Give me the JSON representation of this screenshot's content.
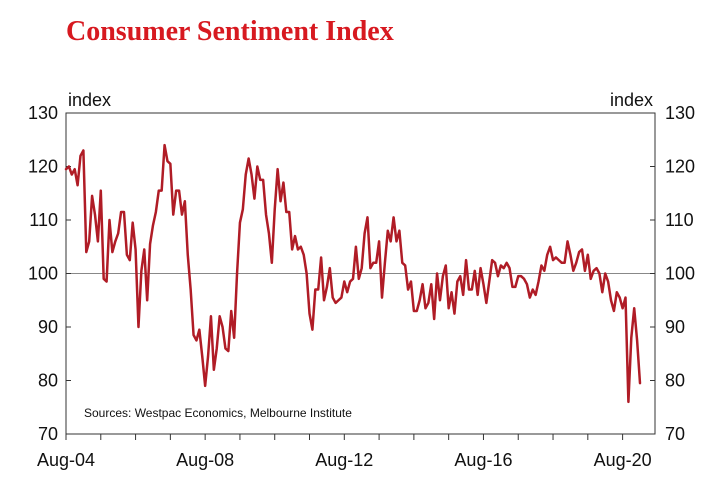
{
  "chart_data": {
    "type": "line",
    "title": "Consumer Sentiment Index",
    "ylabel_left": "index",
    "ylabel_right": "index",
    "ylim": [
      70,
      130
    ],
    "yticks": [
      70,
      80,
      90,
      100,
      110,
      120,
      130
    ],
    "reference_line": 100,
    "x_start": "Aug-04",
    "x_end": "Aug-20",
    "xticks": [
      {
        "label": "Aug-04",
        "t": 0
      },
      {
        "label": "Aug-08",
        "t": 48
      },
      {
        "label": "Aug-12",
        "t": 96
      },
      {
        "label": "Aug-16",
        "t": 144
      },
      {
        "label": "Aug-20",
        "t": 192
      }
    ],
    "source": "Sources: Westpac Economics, Melbourne Institute",
    "colors": {
      "title": "#d71920",
      "series": "#b01c26",
      "axis": "#333333",
      "reference": "#888888"
    },
    "series": [
      {
        "name": "Consumer Sentiment Index",
        "points": [
          [
            0,
            119.5
          ],
          [
            1,
            120
          ],
          [
            2,
            118.5
          ],
          [
            3,
            119.5
          ],
          [
            4,
            116.5
          ],
          [
            5,
            122
          ],
          [
            6,
            123
          ],
          [
            7,
            104
          ],
          [
            8,
            106
          ],
          [
            9,
            114.5
          ],
          [
            10,
            111
          ],
          [
            11,
            106
          ],
          [
            12,
            115.5
          ],
          [
            13,
            99
          ],
          [
            14,
            98.5
          ],
          [
            15,
            110
          ],
          [
            16,
            104
          ],
          [
            17,
            106
          ],
          [
            18,
            107.5
          ],
          [
            19,
            111.5
          ],
          [
            20,
            111.5
          ],
          [
            21,
            103.5
          ],
          [
            22,
            102.5
          ],
          [
            23,
            109.5
          ],
          [
            24,
            104.5
          ],
          [
            25,
            90
          ],
          [
            26,
            100.5
          ],
          [
            27,
            104.5
          ],
          [
            28,
            95
          ],
          [
            29,
            105.5
          ],
          [
            30,
            109
          ],
          [
            31,
            111.5
          ],
          [
            32,
            115.5
          ],
          [
            33,
            115.5
          ],
          [
            34,
            124
          ],
          [
            35,
            121
          ],
          [
            36,
            120.5
          ],
          [
            37,
            111
          ],
          [
            38,
            115.5
          ],
          [
            39,
            115.5
          ],
          [
            40,
            111
          ],
          [
            41,
            113.5
          ],
          [
            42,
            103.5
          ],
          [
            43,
            97
          ],
          [
            44,
            88.5
          ],
          [
            45,
            87.5
          ],
          [
            46,
            89.5
          ],
          [
            47,
            84.5
          ],
          [
            48,
            79
          ],
          [
            49,
            84.5
          ],
          [
            50,
            92
          ],
          [
            51,
            82
          ],
          [
            52,
            86
          ],
          [
            53,
            92
          ],
          [
            54,
            90
          ],
          [
            55,
            86
          ],
          [
            56,
            85.5
          ],
          [
            57,
            93
          ],
          [
            58,
            88
          ],
          [
            59,
            100
          ],
          [
            60,
            109.5
          ],
          [
            61,
            112
          ],
          [
            62,
            118.5
          ],
          [
            63,
            121.5
          ],
          [
            64,
            118.5
          ],
          [
            65,
            114
          ],
          [
            66,
            120
          ],
          [
            67,
            117.5
          ],
          [
            68,
            117.5
          ],
          [
            69,
            111
          ],
          [
            70,
            107.5
          ],
          [
            71,
            102
          ],
          [
            72,
            112
          ],
          [
            73,
            119.5
          ],
          [
            74,
            113.5
          ],
          [
            75,
            117
          ],
          [
            76,
            111.5
          ],
          [
            77,
            111.5
          ],
          [
            78,
            104.5
          ],
          [
            79,
            107
          ],
          [
            80,
            104.5
          ],
          [
            81,
            105
          ],
          [
            82,
            103.5
          ],
          [
            83,
            100
          ],
          [
            84,
            92.5
          ],
          [
            85,
            89.5
          ],
          [
            86,
            97
          ],
          [
            87,
            97
          ],
          [
            88,
            103
          ],
          [
            89,
            95
          ],
          [
            90,
            97.5
          ],
          [
            91,
            101
          ],
          [
            92,
            95.5
          ],
          [
            93,
            94.5
          ],
          [
            94,
            95
          ],
          [
            95,
            95.5
          ],
          [
            96,
            98.5
          ],
          [
            97,
            96.5
          ],
          [
            98,
            98.5
          ],
          [
            99,
            99
          ],
          [
            100,
            105
          ],
          [
            101,
            99
          ],
          [
            102,
            101
          ],
          [
            103,
            107.5
          ],
          [
            104,
            110.5
          ],
          [
            105,
            101
          ],
          [
            106,
            102
          ],
          [
            107,
            102
          ],
          [
            108,
            106
          ],
          [
            109,
            95.5
          ],
          [
            110,
            102
          ],
          [
            111,
            108
          ],
          [
            112,
            106
          ],
          [
            113,
            110.5
          ],
          [
            114,
            106
          ],
          [
            115,
            108
          ],
          [
            116,
            102
          ],
          [
            117,
            101.5
          ],
          [
            118,
            97
          ],
          [
            119,
            98.5
          ],
          [
            120,
            93
          ],
          [
            121,
            93
          ],
          [
            122,
            95
          ],
          [
            123,
            98
          ],
          [
            124,
            93.5
          ],
          [
            125,
            94.5
          ],
          [
            126,
            98
          ],
          [
            127,
            91.5
          ],
          [
            128,
            100
          ],
          [
            129,
            95
          ],
          [
            130,
            99.5
          ],
          [
            131,
            101.5
          ],
          [
            132,
            93.5
          ],
          [
            133,
            96.5
          ],
          [
            134,
            92.5
          ],
          [
            135,
            98.5
          ],
          [
            136,
            99.5
          ],
          [
            137,
            96
          ],
          [
            138,
            102.5
          ],
          [
            139,
            97
          ],
          [
            140,
            97
          ],
          [
            141,
            100.5
          ],
          [
            142,
            96
          ],
          [
            143,
            101
          ],
          [
            144,
            98
          ],
          [
            145,
            94.5
          ],
          [
            146,
            98.5
          ],
          [
            147,
            102.5
          ],
          [
            148,
            102
          ],
          [
            149,
            99.5
          ],
          [
            150,
            101.5
          ],
          [
            151,
            101
          ],
          [
            152,
            102
          ],
          [
            153,
            101
          ],
          [
            154,
            97.5
          ],
          [
            155,
            97.5
          ],
          [
            156,
            99.5
          ],
          [
            157,
            99.5
          ],
          [
            158,
            99
          ],
          [
            159,
            98
          ],
          [
            160,
            95.5
          ],
          [
            161,
            97
          ],
          [
            162,
            96
          ],
          [
            163,
            98.5
          ],
          [
            164,
            101.5
          ],
          [
            165,
            100.5
          ],
          [
            166,
            103.5
          ],
          [
            167,
            105
          ],
          [
            168,
            102.5
          ],
          [
            169,
            103
          ],
          [
            170,
            102.5
          ],
          [
            171,
            102
          ],
          [
            172,
            102
          ],
          [
            173,
            106
          ],
          [
            174,
            103.5
          ],
          [
            175,
            100.5
          ],
          [
            176,
            102
          ],
          [
            177,
            104
          ],
          [
            178,
            104.5
          ],
          [
            179,
            100.5
          ],
          [
            180,
            103.5
          ],
          [
            181,
            99
          ],
          [
            182,
            100.5
          ],
          [
            183,
            101
          ],
          [
            184,
            100
          ],
          [
            185,
            96.5
          ],
          [
            186,
            100
          ],
          [
            187,
            98.5
          ],
          [
            188,
            95
          ],
          [
            189,
            93
          ],
          [
            190,
            96.5
          ],
          [
            191,
            95.5
          ],
          [
            192,
            93.5
          ],
          [
            193,
            95.5
          ],
          [
            194,
            76
          ],
          [
            195,
            88
          ],
          [
            196,
            93.5
          ],
          [
            197,
            87.5
          ],
          [
            198,
            79.5
          ]
        ]
      }
    ]
  }
}
